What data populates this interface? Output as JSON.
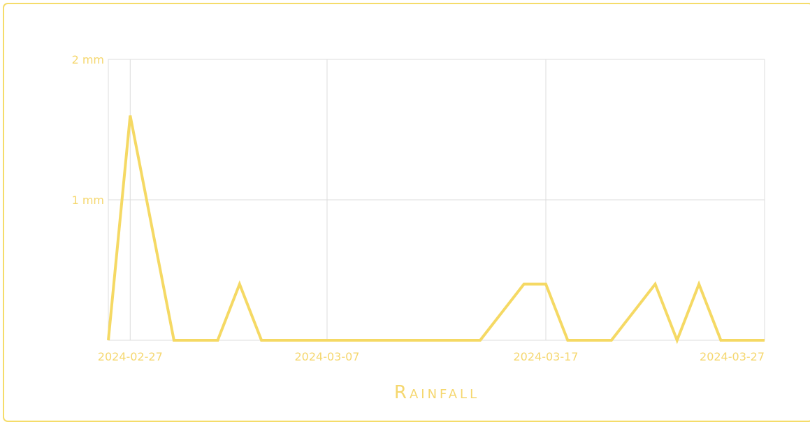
{
  "colors": {
    "line": "#f5d964",
    "text": "#f5d76e",
    "grid": "#dcdcdc",
    "border": "#f5dc6a"
  },
  "chart_data": {
    "type": "line",
    "title": "Rainfall",
    "xlabel": "",
    "ylabel": "",
    "x_ticks": [
      "2024-02-27",
      "2024-03-07",
      "2024-03-17",
      "2024-03-27"
    ],
    "y_ticks": [
      "",
      "1 mm",
      "2 mm"
    ],
    "ylim": [
      0,
      2
    ],
    "xlim": [
      "2024-02-26",
      "2024-03-27"
    ],
    "grid": true,
    "series": [
      {
        "x": [
          "2024-02-26",
          "2024-02-27",
          "2024-02-28",
          "2024-02-29",
          "2024-03-01",
          "2024-03-02",
          "2024-03-03",
          "2024-03-04",
          "2024-03-05",
          "2024-03-06",
          "2024-03-07",
          "2024-03-08",
          "2024-03-09",
          "2024-03-10",
          "2024-03-11",
          "2024-03-12",
          "2024-03-13",
          "2024-03-14",
          "2024-03-15",
          "2024-03-16",
          "2024-03-17",
          "2024-03-18",
          "2024-03-19",
          "2024-03-20",
          "2024-03-21",
          "2024-03-22",
          "2024-03-23",
          "2024-03-24",
          "2024-03-25",
          "2024-03-26",
          "2024-03-27"
        ],
        "values": [
          0,
          1.6,
          0.8,
          0,
          0,
          0,
          0.4,
          0,
          0,
          0,
          0,
          0,
          0,
          0,
          0,
          0,
          0,
          0,
          0.2,
          0.4,
          0.4,
          0,
          0,
          0,
          0.2,
          0.4,
          0,
          0.4,
          0,
          0,
          0
        ]
      }
    ]
  }
}
